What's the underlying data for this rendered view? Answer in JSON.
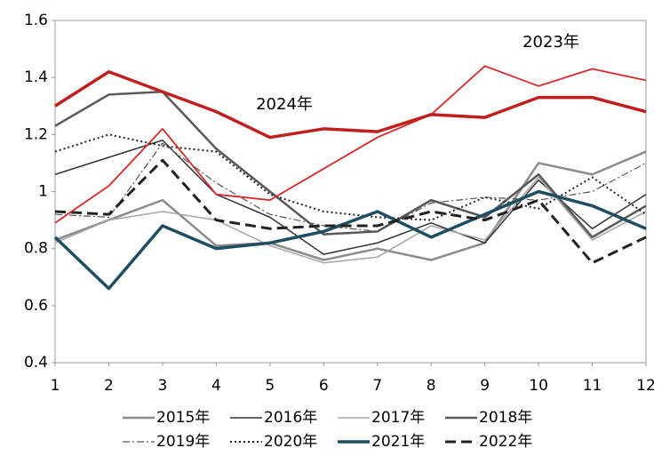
{
  "chart_data": {
    "type": "line",
    "x": [
      1,
      2,
      3,
      4,
      5,
      6,
      7,
      8,
      9,
      10,
      11,
      12
    ],
    "xlim": [
      1,
      12
    ],
    "xticks": [
      1,
      2,
      3,
      4,
      5,
      6,
      7,
      8,
      9,
      10,
      11,
      12
    ],
    "ylim": [
      0.4,
      1.6
    ],
    "yticks": [
      0.4,
      0.6,
      0.8,
      1,
      1.2,
      1.4,
      1.6
    ],
    "grid": false,
    "legend": "bottom",
    "series": [
      {
        "name": "2015年",
        "color": "#8c8c8c",
        "width": 2.5,
        "dash": "",
        "values": [
          0.83,
          0.9,
          0.97,
          0.81,
          0.82,
          0.76,
          0.8,
          0.76,
          0.82,
          1.1,
          1.06,
          1.14
        ]
      },
      {
        "name": "2016年",
        "color": "#333333",
        "width": 1.5,
        "dash": "",
        "values": [
          1.06,
          1.12,
          1.18,
          0.99,
          0.91,
          0.78,
          0.82,
          0.89,
          0.82,
          1.04,
          0.87,
          0.99
        ]
      },
      {
        "name": "2017年",
        "color": "#a6a6a6",
        "width": 1.5,
        "dash": "",
        "values": [
          0.82,
          0.9,
          0.93,
          0.9,
          0.81,
          0.75,
          0.77,
          0.88,
          0.83,
          1.05,
          0.83,
          0.93
        ]
      },
      {
        "name": "2018年",
        "color": "#595959",
        "width": 2.5,
        "dash": "",
        "values": [
          1.23,
          1.34,
          1.35,
          1.15,
          1.0,
          0.85,
          0.86,
          0.97,
          0.91,
          1.06,
          0.84,
          0.95
        ]
      },
      {
        "name": "2019年",
        "color": "#555555",
        "width": 1.2,
        "dash": "8 3 2 3",
        "values": [
          0.92,
          0.91,
          1.17,
          1.03,
          0.92,
          0.88,
          0.86,
          0.96,
          0.98,
          0.97,
          1.0,
          1.1
        ]
      },
      {
        "name": "2020年",
        "color": "#222222",
        "width": 2,
        "dash": "2 3",
        "values": [
          1.14,
          1.2,
          1.16,
          1.14,
          0.99,
          0.93,
          0.91,
          0.9,
          0.98,
          0.94,
          1.05,
          0.92
        ]
      },
      {
        "name": "2021年",
        "color": "#1f4e63",
        "width": 3.5,
        "dash": "",
        "values": [
          0.84,
          0.66,
          0.88,
          0.8,
          0.82,
          0.86,
          0.93,
          0.84,
          0.92,
          1.0,
          0.95,
          0.87
        ]
      },
      {
        "name": "2022年",
        "color": "#222222",
        "width": 3,
        "dash": "12 6",
        "values": [
          0.93,
          0.92,
          1.11,
          0.9,
          0.87,
          0.88,
          0.88,
          0.93,
          0.9,
          0.97,
          0.75,
          0.84
        ]
      }
    ],
    "labeled_series": [
      {
        "name": "2023年",
        "color": "#d42a2a",
        "width": 1.8,
        "values": [
          0.89,
          1.02,
          1.22,
          0.99,
          0.97,
          1.08,
          1.19,
          1.27,
          1.44,
          1.37,
          1.43,
          1.39
        ]
      },
      {
        "name": "2024年",
        "color": "#c01f1f",
        "width": 3.5,
        "values": [
          1.3,
          1.42,
          1.35,
          1.28,
          1.19,
          1.22,
          1.21,
          1.27,
          1.26,
          1.33,
          1.33,
          1.28
        ]
      }
    ]
  }
}
